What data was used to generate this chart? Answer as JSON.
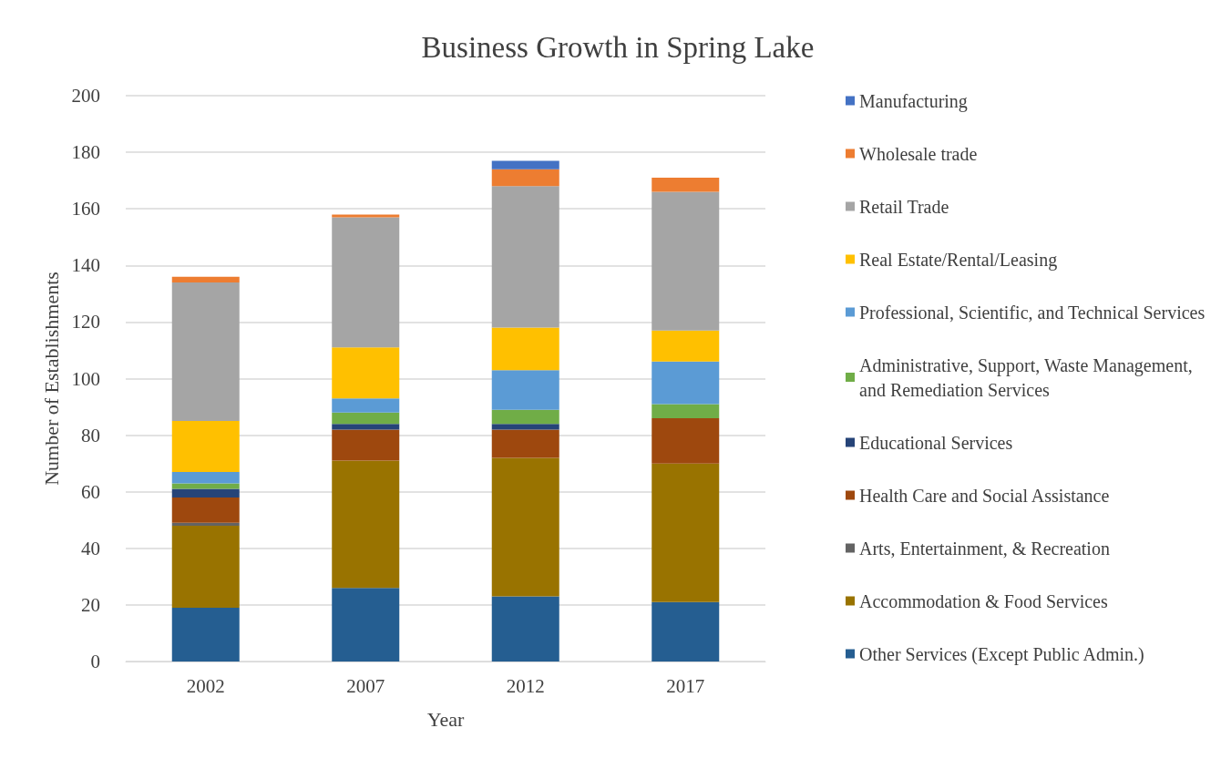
{
  "chart_data": {
    "type": "bar",
    "title": "Business Growth in Spring Lake",
    "xlabel": "Year",
    "ylabel": "Number of Establishments",
    "categories": [
      "2002",
      "2007",
      "2012",
      "2017"
    ],
    "stacked": true,
    "series": [
      {
        "name": "Other Services (Except Public Admin.)",
        "color": "#255e91",
        "values": [
          19,
          26,
          23,
          21
        ]
      },
      {
        "name": "Accommodation & Food Services",
        "color": "#997300",
        "values": [
          29,
          45,
          49,
          49
        ]
      },
      {
        "name": "Arts, Entertainment, & Recreation",
        "color": "#636363",
        "values": [
          1,
          0,
          0,
          0
        ]
      },
      {
        "name": "Health Care and Social Assistance",
        "color": "#9e480e",
        "values": [
          9,
          11,
          10,
          16
        ]
      },
      {
        "name": "Educational Services",
        "color": "#264478",
        "values": [
          3,
          2,
          2,
          0
        ]
      },
      {
        "name": "Administrative, Support, Waste Management, and Remediation Services",
        "color": "#70ad47",
        "values": [
          2,
          4,
          5,
          5
        ]
      },
      {
        "name": "Professional, Scientific, and Technical Services",
        "color": "#5b9bd5",
        "values": [
          4,
          5,
          14,
          15
        ]
      },
      {
        "name": "Real Estate/Rental/Leasing",
        "color": "#ffc000",
        "values": [
          18,
          18,
          15,
          11
        ]
      },
      {
        "name": "Retail Trade",
        "color": "#a5a5a5",
        "values": [
          49,
          46,
          50,
          49
        ]
      },
      {
        "name": "Wholesale trade",
        "color": "#ed7d31",
        "values": [
          2,
          1,
          6,
          5
        ]
      },
      {
        "name": "Manufacturing",
        "color": "#4472c4",
        "values": [
          0,
          0,
          3,
          0
        ]
      }
    ],
    "ylim": [
      0,
      200
    ],
    "yticks": [
      0,
      20,
      40,
      60,
      80,
      100,
      120,
      140,
      160,
      180,
      200
    ],
    "grid": "y",
    "legend": "right"
  }
}
